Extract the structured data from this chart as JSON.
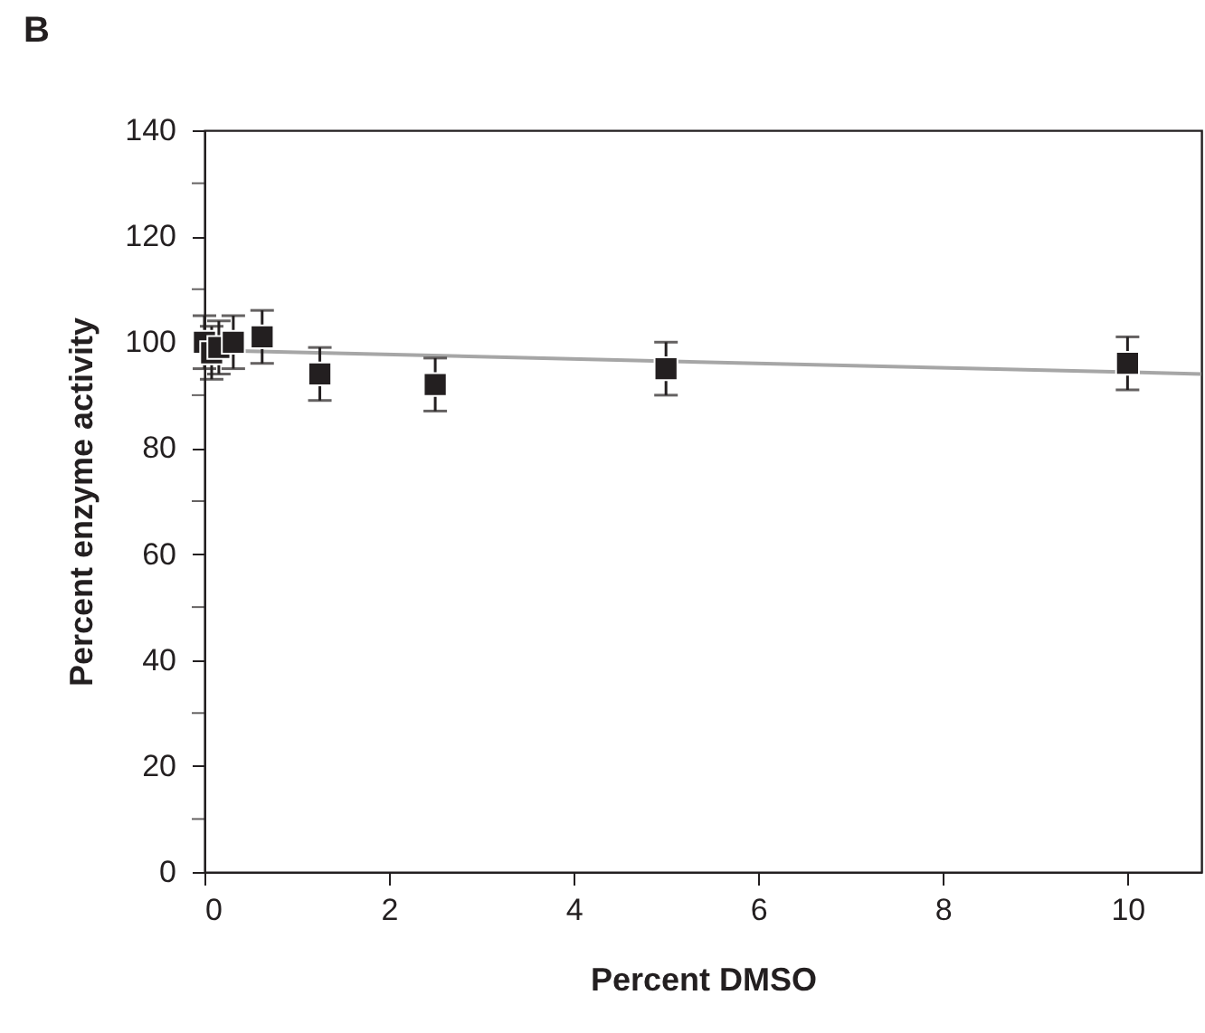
{
  "chart_data": {
    "type": "scatter",
    "title": "B",
    "xlabel": "Percent DMSO",
    "ylabel": "Percent enzyme activity",
    "x": [
      0,
      0.078,
      0.156,
      0.3125,
      0.625,
      1.25,
      2.5,
      5,
      10
    ],
    "series": [
      {
        "type": "line",
        "marker": "none",
        "color": "#a6a6a6",
        "x": [
          0,
          10.8
        ],
        "values": [
          98.5,
          94
        ]
      },
      {
        "type": "scatter",
        "color": "#231f20",
        "values": [
          100,
          98,
          99,
          100,
          101,
          94,
          92,
          95,
          96
        ],
        "errors": [
          5,
          5,
          5,
          5,
          5,
          5,
          5,
          5,
          5
        ]
      }
    ],
    "xlim": [
      0,
      10.8
    ],
    "xticks": [
      0,
      2,
      4,
      6,
      8,
      10
    ],
    "ylim": [
      0,
      140
    ],
    "yticks": [
      0,
      {
        "value": 10,
        "label": null
      },
      20,
      {
        "value": 30,
        "label": null
      },
      40,
      {
        "value": 50,
        "label": null
      },
      60,
      {
        "value": 70,
        "label": null
      },
      80,
      {
        "value": 90,
        "label": null
      },
      100,
      {
        "value": 110,
        "label": null
      },
      120,
      {
        "value": 130,
        "label": null
      },
      140
    ],
    "marker": "square",
    "grid": false
  }
}
